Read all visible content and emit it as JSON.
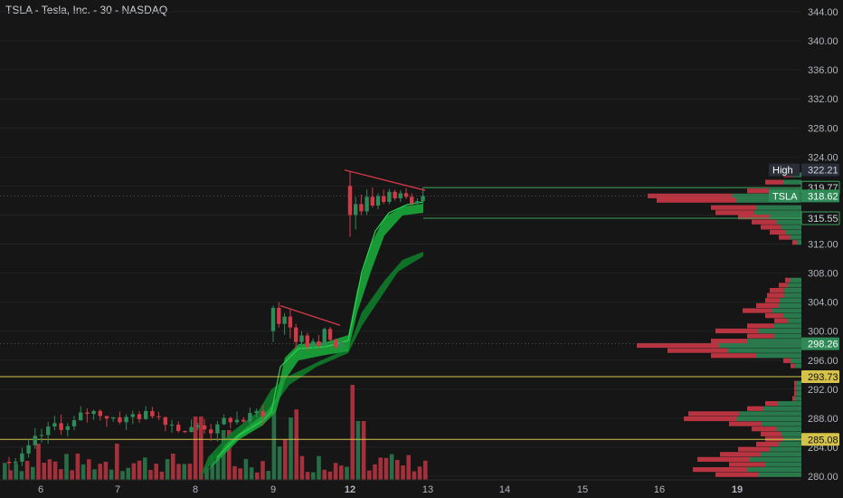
{
  "title": "TSLA - Tesla, Inc. - 30 - NASDAQ",
  "colors": {
    "background": "#161616",
    "up": "#2e8b57",
    "down": "#d33a48",
    "ribbon": "#19a63a",
    "ribbon_dark": "#0e7a2a",
    "level_line": "#d4c24a",
    "text": "#d1d4dc",
    "grid": "#222222"
  },
  "chart_data": {
    "type": "candlestick",
    "symbol": "TSLA",
    "interval": "30",
    "exchange": "NASDAQ",
    "x_ticks": [
      "6",
      "7",
      "8",
      "9",
      "12",
      "13",
      "14",
      "15",
      "16",
      "19"
    ],
    "y_ticks": [
      280,
      284,
      288,
      292,
      296,
      300,
      304,
      308,
      312,
      316,
      320,
      324,
      328,
      332,
      336,
      340,
      344
    ],
    "y_tick_labels": [
      "280.00",
      "284.00",
      "288.00",
      "292.00",
      "296.00",
      "300.00",
      "304.00",
      "308.00",
      "312.00",
      "316.00",
      "320.00",
      "324.00",
      "328.00",
      "332.00",
      "336.00",
      "340.00",
      "344.00"
    ],
    "ylim": [
      279.5,
      345
    ],
    "last_price": 318.62,
    "price_labels": [
      {
        "value": 322.21,
        "text": "322.21",
        "prefix": "High",
        "style": "dark"
      },
      {
        "value": 319.77,
        "text": "319.77",
        "style": "green-outline"
      },
      {
        "value": 318.62,
        "text": "318.62",
        "prefix": "TSLA",
        "style": "green"
      },
      {
        "value": 315.55,
        "text": "315.55",
        "style": "green-outline"
      },
      {
        "value": 298.26,
        "text": "298.26",
        "style": "green"
      },
      {
        "value": 293.73,
        "text": "293.73",
        "style": "yellow"
      },
      {
        "value": 285.08,
        "text": "285.08",
        "style": "yellow"
      }
    ],
    "horizontal_lines": [
      {
        "value": 319.77,
        "style": "green"
      },
      {
        "value": 315.55,
        "style": "green"
      },
      {
        "value": 318.62,
        "style": "dotted"
      },
      {
        "value": 298.26,
        "style": "dotted"
      },
      {
        "value": 293.73,
        "style": "yellow"
      },
      {
        "value": 285.08,
        "style": "yellow"
      }
    ],
    "candles_day9": [
      [
        300.0,
        303.5,
        298.5,
        303.2
      ],
      [
        303.2,
        304.0,
        300.5,
        301.0
      ],
      [
        301.0,
        302.5,
        299.5,
        302.0
      ],
      [
        302.0,
        303.0,
        299.0,
        300.5
      ],
      [
        300.5,
        301.0,
        297.5,
        298.5
      ],
      [
        298.5,
        300.0,
        297.0,
        299.4
      ],
      [
        299.4,
        299.8,
        297.3,
        297.8
      ],
      [
        297.8,
        299.0,
        297.5,
        298.6
      ],
      [
        298.6,
        299.5,
        297.5,
        298.0
      ],
      [
        298.0,
        300.5,
        297.8,
        300.3
      ],
      [
        300.3,
        300.6,
        298.6,
        298.8
      ],
      [
        298.8,
        299.0,
        297.4,
        297.8
      ],
      [
        297.8,
        298.8,
        297.2,
        298.5
      ]
    ],
    "candles_day12": [
      [
        320.0,
        322.0,
        313.0,
        316.0
      ],
      [
        316.0,
        318.5,
        314.0,
        317.5
      ],
      [
        317.5,
        318.8,
        316.0,
        316.5
      ],
      [
        316.5,
        319.5,
        316.0,
        318.5
      ],
      [
        318.5,
        319.8,
        317.0,
        317.3
      ],
      [
        317.3,
        319.0,
        316.8,
        318.6
      ],
      [
        318.6,
        319.5,
        317.5,
        317.8
      ],
      [
        317.8,
        319.6,
        317.5,
        319.2
      ],
      [
        319.2,
        319.5,
        318.0,
        318.3
      ],
      [
        318.3,
        319.4,
        317.8,
        319.0
      ],
      [
        319.0,
        319.7,
        318.2,
        318.5
      ],
      [
        318.5,
        319.0,
        317.3,
        317.6
      ],
      [
        317.6,
        318.3,
        317.0,
        317.9
      ],
      [
        317.9,
        319.8,
        317.5,
        318.62
      ]
    ],
    "trendlines": [
      {
        "from": {
          "bar": "day9-0",
          "value": 303.5
        },
        "to": {
          "bar": "day9-12",
          "value": 300.8
        },
        "color": "down"
      },
      {
        "from": {
          "bar": "day12-0",
          "value": 322.2
        },
        "to": {
          "bar": "day12-13",
          "value": 319.4
        },
        "color": "down"
      }
    ]
  }
}
